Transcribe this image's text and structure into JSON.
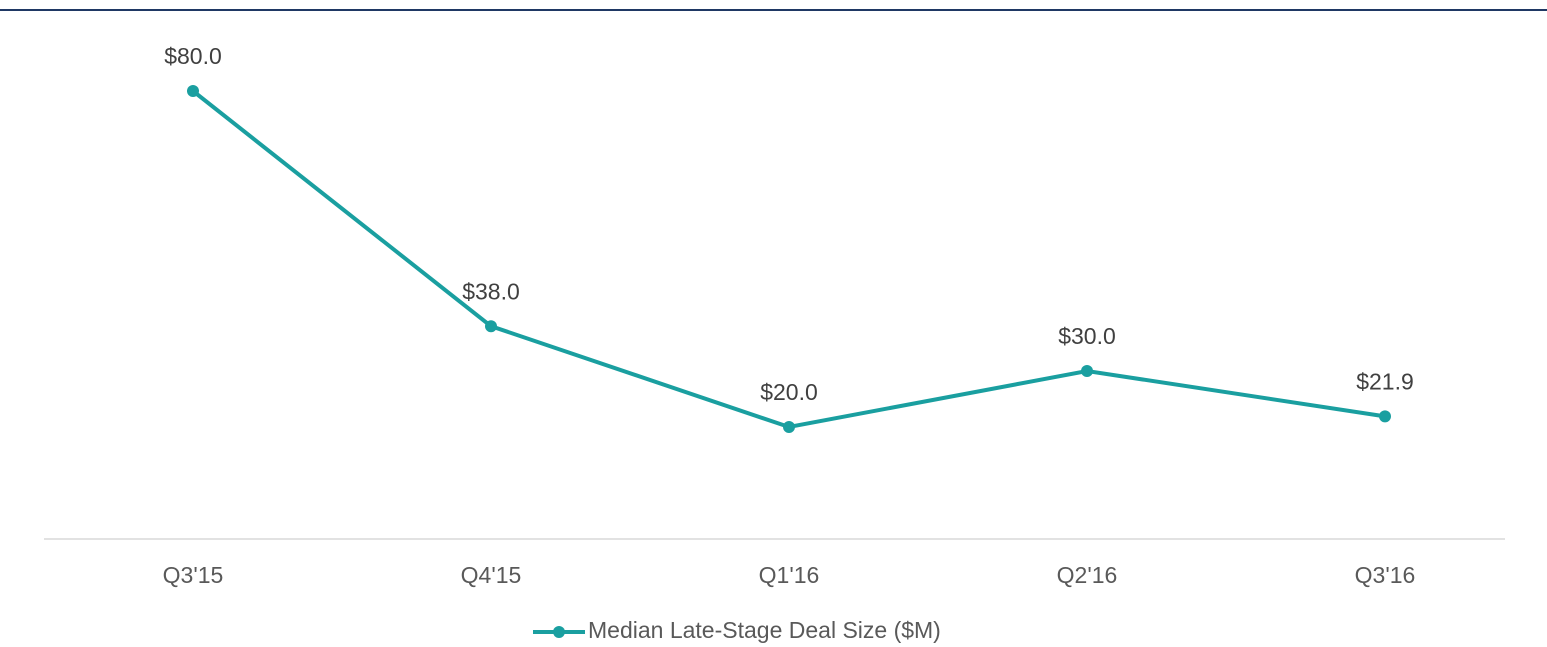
{
  "chart_data": {
    "type": "line",
    "categories": [
      "Q3'15",
      "Q4'15",
      "Q1'16",
      "Q2'16",
      "Q3'16"
    ],
    "series": [
      {
        "name": "Median Late-Stage Deal Size ($M)",
        "color": "#1a9fa0",
        "values": [
          80.0,
          38.0,
          20.0,
          30.0,
          21.9
        ],
        "value_labels": [
          "$80.0",
          "$38.0",
          "$20.0",
          "$30.0",
          "$21.9"
        ]
      }
    ],
    "ylim": [
      0,
      90
    ],
    "legend": "bottom"
  }
}
